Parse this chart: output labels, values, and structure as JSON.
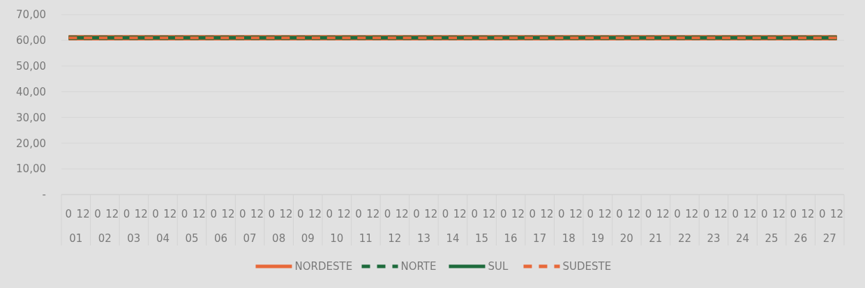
{
  "chart_data": {
    "type": "line",
    "categories": [
      "0",
      "12",
      "0",
      "12",
      "0",
      "12",
      "0",
      "12",
      "0",
      "12",
      "0",
      "12",
      "0",
      "12",
      "0",
      "12",
      "0",
      "12",
      "0",
      "12",
      "0",
      "12",
      "0",
      "12",
      "0",
      "12",
      "0",
      "12",
      "0",
      "12",
      "0",
      "12",
      "0",
      "12",
      "0",
      "12",
      "0",
      "12",
      "0",
      "12",
      "0",
      "12",
      "0",
      "12",
      "0",
      "12",
      "0",
      "12",
      "0",
      "12",
      "0",
      "12",
      "0",
      "12"
    ],
    "annotations": [
      "01",
      "02",
      "03",
      "04",
      "05",
      "06",
      "07",
      "08",
      "09",
      "10",
      "11",
      "12",
      "13",
      "14",
      "15",
      "16",
      "17",
      "18",
      "19",
      "20",
      "21",
      "22",
      "23",
      "24",
      "25",
      "26",
      "27"
    ],
    "series": [
      {
        "name": "NORDESTE",
        "color": "#e8693a",
        "line_style": "solid",
        "values": [
          61,
          61,
          61,
          61,
          61,
          61,
          61,
          61,
          61,
          61,
          61,
          61,
          61,
          61,
          61,
          61,
          61,
          61,
          61,
          61,
          61,
          61,
          61,
          61,
          61,
          61,
          61,
          61,
          61,
          61,
          61,
          61,
          61,
          61,
          61,
          61,
          61,
          61,
          61,
          61,
          61,
          61,
          61,
          61,
          61,
          61,
          61,
          61,
          61,
          61,
          61,
          61,
          61,
          61
        ]
      },
      {
        "name": "NORTE",
        "color": "#1e6b3c",
        "line_style": "dashed",
        "values": [
          61,
          61,
          61,
          61,
          61,
          61,
          61,
          61,
          61,
          61,
          61,
          61,
          61,
          61,
          61,
          61,
          61,
          61,
          61,
          61,
          61,
          61,
          61,
          61,
          61,
          61,
          61,
          61,
          61,
          61,
          61,
          61,
          61,
          61,
          61,
          61,
          61,
          61,
          61,
          61,
          61,
          61,
          61,
          61,
          61,
          61,
          61,
          61,
          61,
          61,
          61,
          61,
          61,
          61
        ]
      },
      {
        "name": "SUL",
        "color": "#1e6b3c",
        "line_style": "solid",
        "values": [
          61,
          61,
          61,
          61,
          61,
          61,
          61,
          61,
          61,
          61,
          61,
          61,
          61,
          61,
          61,
          61,
          61,
          61,
          61,
          61,
          61,
          61,
          61,
          61,
          61,
          61,
          61,
          61,
          61,
          61,
          61,
          61,
          61,
          61,
          61,
          61,
          61,
          61,
          61,
          61,
          61,
          61,
          61,
          61,
          61,
          61,
          61,
          61,
          61,
          61,
          61,
          61,
          61,
          61
        ]
      },
      {
        "name": "SUDESTE",
        "color": "#e8693a",
        "line_style": "dashed",
        "values": [
          61,
          61,
          61,
          61,
          61,
          61,
          61,
          61,
          61,
          61,
          61,
          61,
          61,
          61,
          61,
          61,
          61,
          61,
          61,
          61,
          61,
          61,
          61,
          61,
          61,
          61,
          61,
          61,
          61,
          61,
          61,
          61,
          61,
          61,
          61,
          61,
          61,
          61,
          61,
          61,
          61,
          61,
          61,
          61,
          61,
          61,
          61,
          61,
          61,
          61,
          61,
          61,
          61,
          61
        ]
      }
    ],
    "ylim": [
      0,
      70
    ],
    "yticks": [
      {
        "value": 0,
        "label": "-"
      },
      {
        "value": 10,
        "label": "10,00"
      },
      {
        "value": 20,
        "label": "20,00"
      },
      {
        "value": 30,
        "label": "30,00"
      },
      {
        "value": 40,
        "label": "40,00"
      },
      {
        "value": 50,
        "label": "50,00"
      },
      {
        "value": 60,
        "label": "60,00"
      },
      {
        "value": 70,
        "label": "70,00"
      }
    ],
    "grid": "y",
    "legend": "bottom"
  }
}
